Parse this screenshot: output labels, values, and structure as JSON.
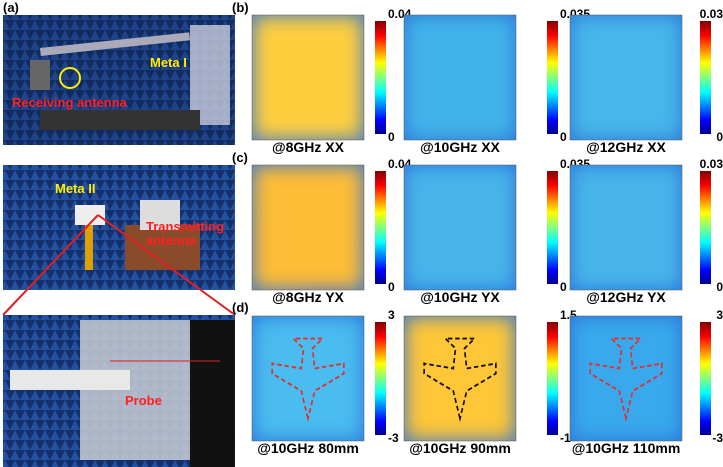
{
  "panel_labels": [
    "(a)",
    "(b)",
    "(c)",
    "(d)"
  ],
  "photo_annotations": {
    "meta_1": "Meta I",
    "receiving": "Receiving antenna",
    "meta_2": "Meta II",
    "transmitting": "Transmitting antenna",
    "probe": "Probe"
  },
  "maps": [
    {
      "captions": [
        "@8GHz XX",
        "@10GHz XX",
        "@12GHz XX"
      ],
      "colorbars": [
        {
          "max": 0.04,
          "min": 0
        },
        {
          "max": 0.035,
          "min": 0
        },
        {
          "max": 0.03,
          "min": 0
        }
      ]
    },
    {
      "captions": [
        "@8GHz YX",
        "@10GHz YX",
        "@12GHz YX"
      ],
      "colorbars": [
        {
          "max": 0.04,
          "min": 0
        },
        {
          "max": 0.035,
          "min": 0
        },
        {
          "max": 0.03,
          "min": 0
        }
      ]
    },
    {
      "captions": [
        "@10GHz 80mm",
        "@10GHz 90mm",
        "@10GHz 110mm"
      ],
      "colorbars": [
        {
          "max": 3,
          "min": -3
        },
        {
          "max": 1.5,
          "min": -1
        },
        {
          "max": 3,
          "min": -3
        }
      ]
    }
  ]
}
